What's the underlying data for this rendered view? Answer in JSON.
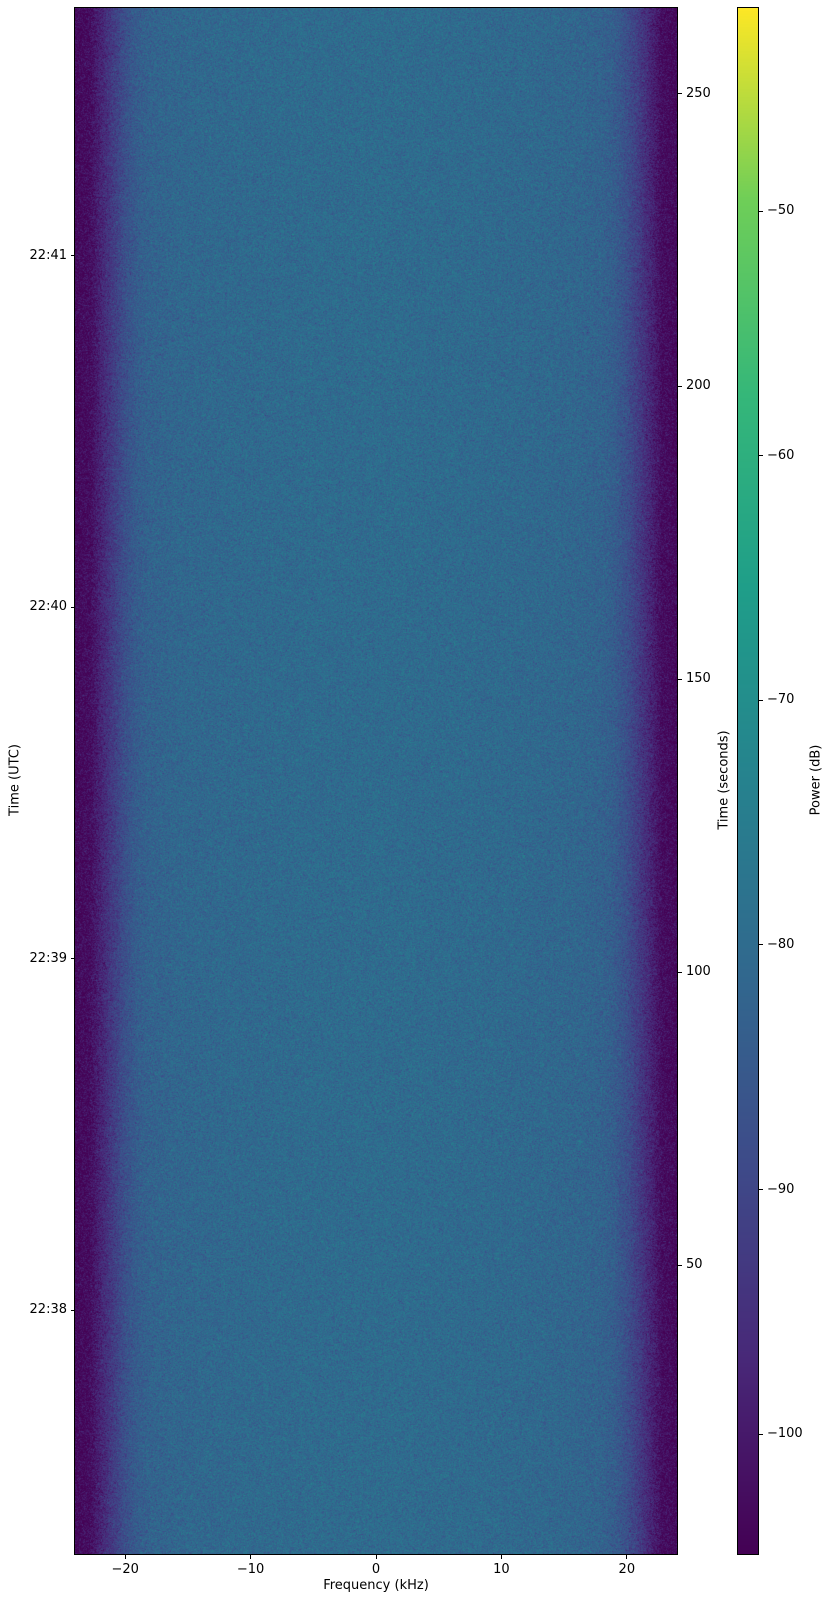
{
  "figure": {
    "xlabel": "Frequency (kHz)",
    "ylabel_left": "Time (UTC)",
    "ylabel_right": "Time (seconds)",
    "colorbar_label": "Power (dB)"
  },
  "chart_data": {
    "type": "heatmap",
    "subtype": "spectrogram-waterfall",
    "title": "",
    "xlabel": "Frequency (kHz)",
    "ylabel": "Time (UTC)",
    "ylabel_secondary": "Time (seconds)",
    "colorbar_label": "Power (dB)",
    "colormap": "viridis",
    "grid": false,
    "xlim_khz": [
      -24,
      24
    ],
    "x_ticks_khz": [
      -20,
      -10,
      0,
      10,
      20
    ],
    "ylim_seconds": [
      0.7,
      264.6
    ],
    "y_ticks_seconds": [
      250,
      200,
      150,
      100,
      50
    ],
    "y_ticks_utc": [
      {
        "label": "22:41",
        "seconds": 222.3
      },
      {
        "label": "22:40",
        "seconds": 162.3
      },
      {
        "label": "22:39",
        "seconds": 102.3
      },
      {
        "label": "22:38",
        "seconds": 42.3
      }
    ],
    "colorbar_range_db": [
      -104.9,
      -41.7
    ],
    "colorbar_ticks_db": [
      -50,
      -60,
      -70,
      -80,
      -90,
      -100
    ],
    "noise_std_db": 2.8,
    "frequency_profile": {
      "comment": "mean noise-floor power (dB) vs frequency (kHz); flat passband ~-80 dB, steep rolloff beyond +/-21 kHz to ~-103.5 dB",
      "freq_khz": [
        -24,
        -22.8,
        -22,
        -21,
        -20,
        -19,
        -18,
        -16,
        -12,
        -6,
        0,
        6,
        12,
        16,
        18,
        19,
        20,
        21,
        22,
        22.8,
        24
      ],
      "power_db": [
        -103.5,
        -102.5,
        -98,
        -92.5,
        -87.5,
        -84,
        -82.5,
        -81.5,
        -80.8,
        -80.3,
        -80.1,
        -80.3,
        -80.8,
        -81.5,
        -82.5,
        -84,
        -87.5,
        -92.5,
        -98,
        -102.5,
        -103.5
      ]
    }
  }
}
